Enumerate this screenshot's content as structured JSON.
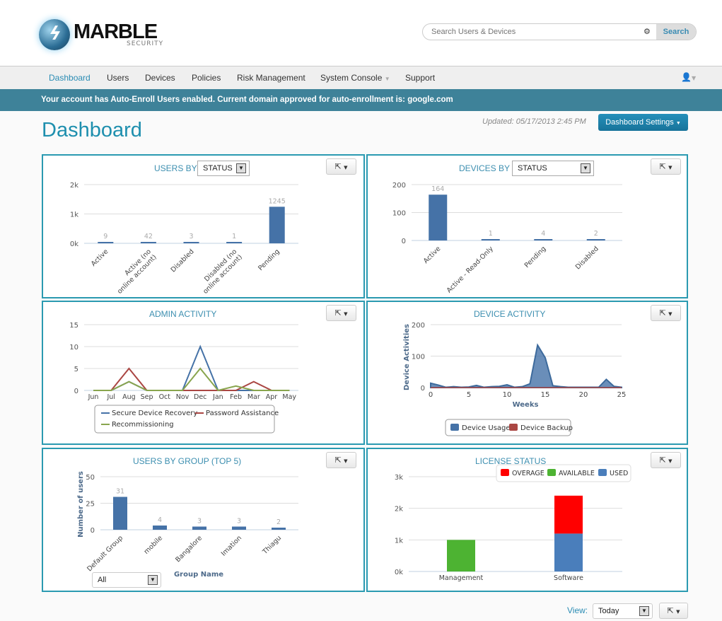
{
  "brand": {
    "name": "MARBLE",
    "tagline": "SECURITY"
  },
  "search": {
    "placeholder": "Search Users & Devices",
    "button": "Search",
    "icon": "gear-icon"
  },
  "nav": {
    "items": [
      "Dashboard",
      "Users",
      "Devices",
      "Policies",
      "Risk Management",
      "System Console",
      "Support"
    ],
    "active": "Dashboard",
    "user_icon": "user-icon"
  },
  "banner": "Your account has Auto-Enroll Users enabled. Current domain approved for auto-enrollment is: google.com",
  "page": {
    "title": "Dashboard",
    "updated": "Updated: 05/17/2013 2:45 PM",
    "settings_button": "Dashboard Settings"
  },
  "panels": {
    "users_by": {
      "title": "USERS BY",
      "select": "STATUS"
    },
    "devices_by": {
      "title": "DEVICES BY",
      "select": "STATUS"
    },
    "admin": {
      "title": "ADMIN ACTIVITY"
    },
    "device_activity": {
      "title": "DEVICE ACTIVITY"
    },
    "users_group": {
      "title": "USERS BY GROUP (TOP 5)",
      "select": "All"
    },
    "license": {
      "title": "LICENSE STATUS"
    }
  },
  "footer": {
    "view_label": "View:",
    "view_select": "Today"
  },
  "colors": {
    "accent": "#2b9ab1",
    "bar": "#4572a7",
    "red": "#aa4643",
    "green": "#89a54e",
    "overage": "#ff0000",
    "available": "#4db332",
    "used": "#4a7ebb"
  },
  "chart_data": [
    {
      "type": "bar",
      "categories": [
        "Active",
        "Active (no\nonline account)",
        "Disabled",
        "Disabled (no\nonline account)",
        "Pending"
      ],
      "values": [
        9,
        42,
        3,
        1,
        1245
      ],
      "ylim": [
        0,
        2000
      ],
      "y_tick_labels": [
        "0k",
        "1k",
        "2k"
      ],
      "xlabel": "",
      "ylabel": ""
    },
    {
      "type": "bar",
      "categories": [
        "Active",
        "Active - Read-Only",
        "Pending",
        "Disabled"
      ],
      "values": [
        164,
        1,
        4,
        2
      ],
      "ylim": [
        0,
        200
      ],
      "y_tick_labels": [
        "0",
        "100",
        "200"
      ],
      "xlabel": "",
      "ylabel": ""
    },
    {
      "type": "line",
      "categories": [
        "Jun",
        "Jul",
        "Aug",
        "Sep",
        "Oct",
        "Nov",
        "Dec",
        "Jan",
        "Feb",
        "Mar",
        "Apr",
        "May"
      ],
      "ylim": [
        0,
        15
      ],
      "y_tick_labels": [
        "0",
        "5",
        "10",
        "15"
      ],
      "legend": "bottom",
      "series": [
        {
          "name": "Secure Device Recovery",
          "values": [
            0,
            0,
            2,
            0,
            0,
            0,
            10,
            0,
            0,
            0,
            0,
            0
          ]
        },
        {
          "name": "Password Assistance",
          "values": [
            0,
            0,
            5,
            0,
            0,
            0,
            0,
            0,
            0,
            2,
            0,
            0
          ]
        },
        {
          "name": "Recommissioning",
          "values": [
            0,
            0,
            2,
            0,
            0,
            0,
            5,
            0,
            1,
            0,
            0,
            0
          ]
        }
      ]
    },
    {
      "type": "area",
      "x": [
        0,
        1,
        2,
        3,
        4,
        5,
        6,
        7,
        8,
        9,
        10,
        11,
        12,
        13,
        14,
        15,
        16,
        17,
        18,
        19,
        20,
        21,
        22,
        23,
        24,
        25
      ],
      "xlim": [
        0,
        25
      ],
      "x_tick_labels": [
        "0",
        "5",
        "10",
        "15",
        "20",
        "25"
      ],
      "ylim": [
        0,
        200
      ],
      "y_tick_labels": [
        "0",
        "100",
        "200"
      ],
      "xlabel": "Weeks",
      "ylabel": "Device Activities",
      "legend": "bottom",
      "series": [
        {
          "name": "Device Usage",
          "values": [
            14,
            8,
            1,
            3,
            1,
            2,
            7,
            1,
            3,
            4,
            9,
            1,
            3,
            12,
            135,
            95,
            6,
            3,
            1,
            1,
            1,
            1,
            1,
            26,
            4,
            1
          ]
        },
        {
          "name": "Device Backup",
          "values": [
            0,
            0,
            0,
            0,
            0,
            0,
            0,
            0,
            0,
            0,
            0,
            0,
            0,
            0,
            0,
            0,
            0,
            0,
            0,
            0,
            0,
            0,
            0,
            0,
            0,
            0
          ]
        }
      ]
    },
    {
      "type": "bar",
      "categories": [
        "Default Group",
        "mobile",
        "Bangalore",
        "Imation",
        "Thiagu"
      ],
      "values": [
        31,
        4,
        3,
        3,
        2
      ],
      "ylim": [
        0,
        50
      ],
      "y_tick_labels": [
        "0",
        "25",
        "50"
      ],
      "xlabel": "Group Name",
      "ylabel": "Number of users"
    },
    {
      "type": "bar",
      "stacked": true,
      "categories": [
        "Management",
        "Software"
      ],
      "ylim": [
        0,
        3000
      ],
      "y_tick_labels": [
        "0k",
        "1k",
        "2k",
        "3k"
      ],
      "legend": "top-right",
      "series": [
        {
          "name": "OVERAGE",
          "values": [
            0,
            1200
          ]
        },
        {
          "name": "AVAILABLE",
          "values": [
            1000,
            0
          ]
        },
        {
          "name": "USED",
          "values": [
            0,
            1200
          ]
        }
      ]
    }
  ]
}
